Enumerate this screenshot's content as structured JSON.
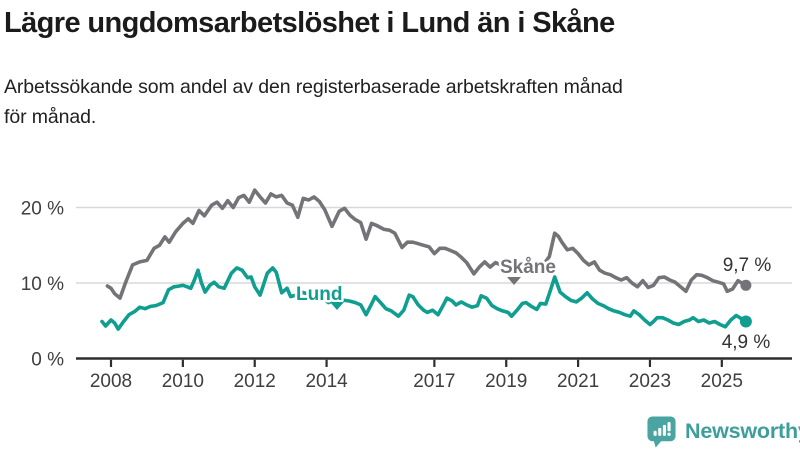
{
  "header": {
    "title": "Lägre ungdomsarbetslöshet i Lund än i Skåne",
    "subtitle_lines": [
      "Arbetssökande som andel av den registerbaserade arbetskraften månad",
      "för månad."
    ]
  },
  "footer": {
    "brand": "Newsworthy",
    "logo_icon": "bar-chart-speech-bubble-icon"
  },
  "colors": {
    "lund": "#0f9e90",
    "skane": "#737378",
    "axis": "#2e2e2e",
    "grid": "#d8d8d8",
    "title_text": "#1b1b1b",
    "logo_teal": "#4aa5a2",
    "brand_text": "#3e9e9b"
  },
  "chart_data": {
    "type": "line",
    "title": "Lägre ungdomsarbetslöshet i Lund än i Skåne",
    "subtitle": "Arbetssökande som andel av den registerbaserade arbetskraften månad för månad.",
    "unit": "%",
    "grid": "horizontal",
    "legend_position": "inline-labels",
    "ylim": [
      0,
      25
    ],
    "xlim": [
      2007.6,
      2026.2
    ],
    "yticks": [
      {
        "value": 0,
        "label": "0 %"
      },
      {
        "value": 10,
        "label": "10 %"
      },
      {
        "value": 20,
        "label": "20 %"
      }
    ],
    "xticks": [
      {
        "year": 2008,
        "label": "2008"
      },
      {
        "year": 2010,
        "label": "2010"
      },
      {
        "year": 2012,
        "label": "2012"
      },
      {
        "year": 2014,
        "label": "2014"
      },
      {
        "year": 2017,
        "label": "2017"
      },
      {
        "year": 2019,
        "label": "2019"
      },
      {
        "year": 2021,
        "label": "2021"
      },
      {
        "year": 2023,
        "label": "2023"
      },
      {
        "year": 2025,
        "label": "2025"
      }
    ],
    "series": [
      {
        "name": "Skåne",
        "slug": "skane",
        "color": "#737378",
        "inline_label": {
          "text": "Skåne"
        },
        "end_label": "9,7 %",
        "end_value": 9.7,
        "points": [
          [
            2007.9,
            9.6
          ],
          [
            2008.0,
            9.3
          ],
          [
            2008.1,
            8.6
          ],
          [
            2008.25,
            8.0
          ],
          [
            2008.4,
            10.0
          ],
          [
            2008.6,
            12.4
          ],
          [
            2008.8,
            12.8
          ],
          [
            2009.0,
            13.0
          ],
          [
            2009.2,
            14.6
          ],
          [
            2009.35,
            15.0
          ],
          [
            2009.5,
            16.1
          ],
          [
            2009.62,
            15.4
          ],
          [
            2009.8,
            16.8
          ],
          [
            2010.0,
            17.9
          ],
          [
            2010.15,
            18.5
          ],
          [
            2010.28,
            17.9
          ],
          [
            2010.45,
            19.6
          ],
          [
            2010.6,
            18.9
          ],
          [
            2010.8,
            20.3
          ],
          [
            2010.95,
            20.7
          ],
          [
            2011.1,
            19.9
          ],
          [
            2011.25,
            20.9
          ],
          [
            2011.4,
            20.0
          ],
          [
            2011.55,
            21.3
          ],
          [
            2011.7,
            21.6
          ],
          [
            2011.85,
            20.7
          ],
          [
            2012.0,
            22.3
          ],
          [
            2012.15,
            21.4
          ],
          [
            2012.3,
            20.6
          ],
          [
            2012.45,
            21.8
          ],
          [
            2012.6,
            21.4
          ],
          [
            2012.75,
            21.6
          ],
          [
            2012.9,
            20.6
          ],
          [
            2013.05,
            20.3
          ],
          [
            2013.2,
            18.7
          ],
          [
            2013.35,
            21.2
          ],
          [
            2013.5,
            21.0
          ],
          [
            2013.65,
            21.4
          ],
          [
            2013.8,
            20.8
          ],
          [
            2013.95,
            19.7
          ],
          [
            2014.15,
            17.5
          ],
          [
            2014.35,
            19.5
          ],
          [
            2014.5,
            19.9
          ],
          [
            2014.65,
            19.0
          ],
          [
            2014.8,
            18.4
          ],
          [
            2014.95,
            18.0
          ],
          [
            2015.1,
            15.8
          ],
          [
            2015.25,
            17.9
          ],
          [
            2015.4,
            17.6
          ],
          [
            2015.6,
            17.1
          ],
          [
            2015.75,
            17.0
          ],
          [
            2015.9,
            16.6
          ],
          [
            2016.1,
            14.7
          ],
          [
            2016.25,
            15.4
          ],
          [
            2016.4,
            15.4
          ],
          [
            2016.55,
            15.2
          ],
          [
            2016.7,
            15.0
          ],
          [
            2016.85,
            14.8
          ],
          [
            2017.0,
            13.9
          ],
          [
            2017.15,
            14.6
          ],
          [
            2017.3,
            14.6
          ],
          [
            2017.45,
            14.3
          ],
          [
            2017.6,
            14.0
          ],
          [
            2017.75,
            13.4
          ],
          [
            2017.9,
            12.7
          ],
          [
            2018.1,
            11.2
          ],
          [
            2018.25,
            12.1
          ],
          [
            2018.4,
            12.8
          ],
          [
            2018.55,
            12.1
          ],
          [
            2018.7,
            12.7
          ],
          [
            2018.85,
            12.4
          ],
          [
            2019.0,
            12.1
          ],
          [
            2019.15,
            11.7
          ],
          [
            2019.3,
            12.2
          ],
          [
            2019.45,
            12.4
          ],
          [
            2019.6,
            12.0
          ],
          [
            2019.75,
            12.2
          ],
          [
            2019.9,
            12.1
          ],
          [
            2020.05,
            12.5
          ],
          [
            2020.2,
            13.5
          ],
          [
            2020.35,
            16.6
          ],
          [
            2020.45,
            16.2
          ],
          [
            2020.55,
            15.4
          ],
          [
            2020.7,
            14.4
          ],
          [
            2020.85,
            14.6
          ],
          [
            2021.0,
            13.9
          ],
          [
            2021.15,
            13.0
          ],
          [
            2021.3,
            12.4
          ],
          [
            2021.45,
            12.8
          ],
          [
            2021.6,
            11.7
          ],
          [
            2021.75,
            11.3
          ],
          [
            2021.9,
            11.1
          ],
          [
            2022.05,
            10.7
          ],
          [
            2022.2,
            10.4
          ],
          [
            2022.35,
            10.7
          ],
          [
            2022.5,
            10.0
          ],
          [
            2022.65,
            9.5
          ],
          [
            2022.8,
            10.3
          ],
          [
            2022.95,
            9.4
          ],
          [
            2023.1,
            9.7
          ],
          [
            2023.25,
            10.7
          ],
          [
            2023.4,
            10.8
          ],
          [
            2023.55,
            10.4
          ],
          [
            2023.7,
            10.1
          ],
          [
            2023.85,
            9.5
          ],
          [
            2024.0,
            8.9
          ],
          [
            2024.15,
            10.4
          ],
          [
            2024.3,
            11.1
          ],
          [
            2024.45,
            11.0
          ],
          [
            2024.6,
            10.7
          ],
          [
            2024.75,
            10.3
          ],
          [
            2024.9,
            10.1
          ],
          [
            2025.05,
            9.9
          ],
          [
            2025.15,
            8.9
          ],
          [
            2025.3,
            9.2
          ],
          [
            2025.45,
            10.3
          ],
          [
            2025.55,
            10.0
          ],
          [
            2025.67,
            9.7
          ]
        ]
      },
      {
        "name": "Lund",
        "slug": "lund",
        "color": "#0f9e90",
        "inline_label": {
          "text": "Lund"
        },
        "end_label": "4,9 %",
        "end_value": 4.9,
        "points": [
          [
            2007.75,
            4.9
          ],
          [
            2007.85,
            4.3
          ],
          [
            2008.0,
            5.1
          ],
          [
            2008.1,
            4.7
          ],
          [
            2008.2,
            3.9
          ],
          [
            2008.35,
            4.9
          ],
          [
            2008.5,
            5.8
          ],
          [
            2008.65,
            6.2
          ],
          [
            2008.8,
            6.8
          ],
          [
            2008.95,
            6.6
          ],
          [
            2009.1,
            6.9
          ],
          [
            2009.25,
            7.0
          ],
          [
            2009.45,
            7.4
          ],
          [
            2009.6,
            9.1
          ],
          [
            2009.75,
            9.5
          ],
          [
            2009.9,
            9.6
          ],
          [
            2010.0,
            9.7
          ],
          [
            2010.12,
            9.5
          ],
          [
            2010.22,
            9.3
          ],
          [
            2010.32,
            10.4
          ],
          [
            2010.42,
            11.7
          ],
          [
            2010.52,
            10.0
          ],
          [
            2010.62,
            8.8
          ],
          [
            2010.75,
            9.7
          ],
          [
            2010.87,
            10.1
          ],
          [
            2011.0,
            9.5
          ],
          [
            2011.15,
            9.3
          ],
          [
            2011.35,
            11.3
          ],
          [
            2011.5,
            12.0
          ],
          [
            2011.65,
            11.7
          ],
          [
            2011.8,
            10.7
          ],
          [
            2011.9,
            10.8
          ],
          [
            2012.0,
            9.5
          ],
          [
            2012.15,
            8.4
          ],
          [
            2012.35,
            11.3
          ],
          [
            2012.5,
            12.0
          ],
          [
            2012.6,
            11.4
          ],
          [
            2012.75,
            8.7
          ],
          [
            2012.9,
            9.3
          ],
          [
            2013.0,
            8.2
          ],
          [
            2013.15,
            8.4
          ],
          [
            2013.3,
            8.8
          ],
          [
            2013.45,
            8.6
          ],
          [
            2013.6,
            8.2
          ],
          [
            2013.75,
            8.5
          ],
          [
            2013.9,
            8.0
          ],
          [
            2014.05,
            7.4
          ],
          [
            2014.2,
            7.7
          ],
          [
            2014.35,
            7.9
          ],
          [
            2014.5,
            7.7
          ],
          [
            2014.65,
            7.6
          ],
          [
            2014.8,
            7.4
          ],
          [
            2014.95,
            7.1
          ],
          [
            2015.1,
            5.8
          ],
          [
            2015.25,
            7.2
          ],
          [
            2015.35,
            8.2
          ],
          [
            2015.5,
            7.4
          ],
          [
            2015.65,
            6.6
          ],
          [
            2015.8,
            6.3
          ],
          [
            2016.0,
            5.6
          ],
          [
            2016.15,
            6.4
          ],
          [
            2016.3,
            8.4
          ],
          [
            2016.4,
            8.2
          ],
          [
            2016.55,
            7.1
          ],
          [
            2016.7,
            6.4
          ],
          [
            2016.8,
            6.1
          ],
          [
            2016.95,
            6.4
          ],
          [
            2017.1,
            5.8
          ],
          [
            2017.25,
            7.1
          ],
          [
            2017.35,
            8.0
          ],
          [
            2017.5,
            7.6
          ],
          [
            2017.6,
            7.1
          ],
          [
            2017.75,
            7.5
          ],
          [
            2017.9,
            7.1
          ],
          [
            2018.05,
            6.8
          ],
          [
            2018.2,
            7.0
          ],
          [
            2018.3,
            8.3
          ],
          [
            2018.45,
            8.0
          ],
          [
            2018.6,
            7.0
          ],
          [
            2018.75,
            6.6
          ],
          [
            2018.9,
            6.3
          ],
          [
            2019.05,
            6.1
          ],
          [
            2019.15,
            5.6
          ],
          [
            2019.3,
            6.4
          ],
          [
            2019.45,
            7.3
          ],
          [
            2019.55,
            7.4
          ],
          [
            2019.7,
            6.9
          ],
          [
            2019.85,
            6.5
          ],
          [
            2019.95,
            7.3
          ],
          [
            2020.1,
            7.2
          ],
          [
            2020.22,
            8.9
          ],
          [
            2020.35,
            10.8
          ],
          [
            2020.5,
            8.8
          ],
          [
            2020.65,
            8.2
          ],
          [
            2020.8,
            7.7
          ],
          [
            2020.95,
            7.5
          ],
          [
            2021.1,
            8.0
          ],
          [
            2021.25,
            8.7
          ],
          [
            2021.4,
            7.9
          ],
          [
            2021.55,
            7.3
          ],
          [
            2021.7,
            7.0
          ],
          [
            2021.85,
            6.6
          ],
          [
            2022.0,
            6.3
          ],
          [
            2022.15,
            6.1
          ],
          [
            2022.3,
            5.8
          ],
          [
            2022.45,
            5.6
          ],
          [
            2022.55,
            6.3
          ],
          [
            2022.7,
            5.8
          ],
          [
            2022.85,
            5.1
          ],
          [
            2023.0,
            4.5
          ],
          [
            2023.1,
            4.9
          ],
          [
            2023.2,
            5.4
          ],
          [
            2023.35,
            5.4
          ],
          [
            2023.5,
            5.1
          ],
          [
            2023.65,
            4.7
          ],
          [
            2023.8,
            4.5
          ],
          [
            2023.95,
            4.9
          ],
          [
            2024.1,
            5.1
          ],
          [
            2024.2,
            5.4
          ],
          [
            2024.35,
            4.9
          ],
          [
            2024.5,
            5.1
          ],
          [
            2024.65,
            4.7
          ],
          [
            2024.8,
            4.9
          ],
          [
            2024.95,
            4.5
          ],
          [
            2025.1,
            4.2
          ],
          [
            2025.25,
            5.1
          ],
          [
            2025.4,
            5.7
          ],
          [
            2025.5,
            5.4
          ],
          [
            2025.67,
            4.9
          ]
        ]
      }
    ]
  }
}
